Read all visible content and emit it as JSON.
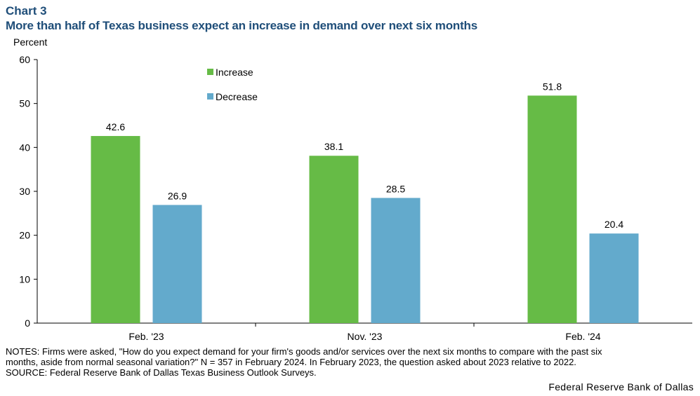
{
  "header": {
    "chart_label": "Chart 3",
    "title": "More than half of Texas business expect an increase in demand over next six months"
  },
  "chart_data": {
    "type": "bar",
    "title": "More than half of Texas business expect an increase in demand over next six months",
    "ylabel": "Percent",
    "xlabel": "",
    "ylim": [
      0,
      60
    ],
    "yticks": [
      0,
      10,
      20,
      30,
      40,
      50,
      60
    ],
    "categories": [
      "Feb. '23",
      "Nov. '23",
      "Feb. '24"
    ],
    "series": [
      {
        "name": "Increase",
        "values": [
          42.6,
          38.1,
          51.8
        ],
        "color": "#66bb46"
      },
      {
        "name": "Decrease",
        "values": [
          26.9,
          28.5,
          20.4
        ],
        "color": "#63aacc"
      }
    ],
    "legend": "top-left",
    "grid": false
  },
  "notes": {
    "line1": "NOTES: Firms were asked, \"How do you expect demand for your firm's goods and/or services over the next six months to compare with the past six",
    "line2": "months, aside from normal seasonal variation?\" N = 357 in February 2024. In February 2023, the question asked about 2023 relative to 2022.",
    "source": "SOURCE: Federal Reserve Bank of Dallas Texas Business Outlook Surveys."
  },
  "footer": {
    "credit": "Federal Reserve Bank of Dallas"
  }
}
